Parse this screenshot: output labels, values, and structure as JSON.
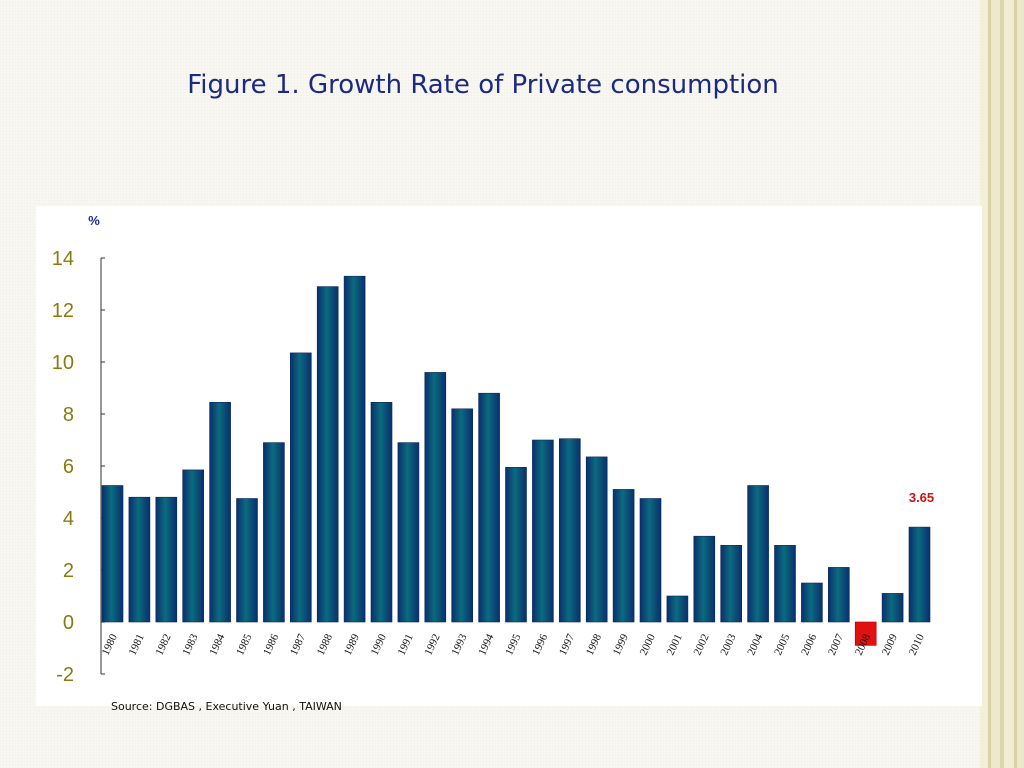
{
  "slide": {
    "title": "Figure 1. Growth Rate of Private consumption",
    "source": "Source: DGBAS , Executive  Yuan , TAIWAN"
  },
  "colors": {
    "bar_positive": "#0b6b7e",
    "bar_positive_dark": "#0a2f6e",
    "bar_negative": "#e31010",
    "axis_label": "#8a7a10",
    "unit": "#1b2b9c",
    "annotation": "#d01010",
    "title": "#1c2a80"
  },
  "chart_data": {
    "type": "bar",
    "title": "Figure 1. Growth Rate of Private consumption",
    "ylabel": "%",
    "xlabel": "",
    "ylim": [
      -2,
      14
    ],
    "yticks": [
      14,
      12,
      10,
      8,
      6,
      4,
      2,
      0,
      -2
    ],
    "categories": [
      "1980",
      "1981",
      "1982",
      "1983",
      "1984",
      "1985",
      "1986",
      "1987",
      "1988",
      "1989",
      "1990",
      "1991",
      "1992",
      "1993",
      "1994",
      "1995",
      "1996",
      "1997",
      "1998",
      "1999",
      "2000",
      "2001",
      "2002",
      "2003",
      "2004",
      "2005",
      "2006",
      "2007",
      "2008",
      "2009",
      "2010"
    ],
    "values": [
      5.25,
      4.8,
      4.8,
      5.85,
      8.45,
      4.75,
      6.9,
      10.35,
      12.9,
      13.3,
      8.45,
      6.9,
      9.6,
      8.2,
      8.8,
      5.95,
      7.0,
      7.05,
      6.35,
      5.1,
      4.75,
      1.0,
      3.3,
      2.95,
      5.25,
      2.95,
      1.5,
      2.1,
      -0.9,
      1.1,
      3.65
    ],
    "annotations": [
      {
        "category": "2010",
        "text": "3.65"
      }
    ],
    "grid": false,
    "legend": "none"
  }
}
